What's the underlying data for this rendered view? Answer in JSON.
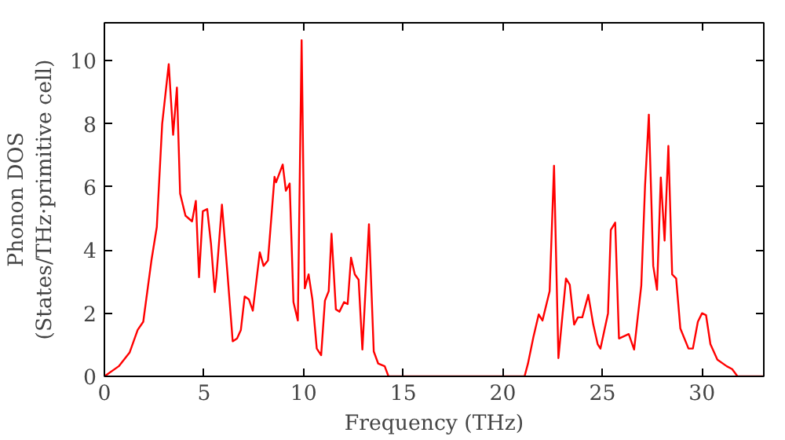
{
  "chart_data": {
    "type": "line",
    "xlabel": "Frequency (THz)",
    "ylabel": "Phonon DOS\n(States/THz·primitive cell)",
    "xlim": [
      0,
      33.1
    ],
    "ylim": [
      0,
      11.2
    ],
    "xticks": [
      0,
      5,
      10,
      15,
      20,
      25,
      30
    ],
    "yticks": [
      0,
      2,
      4,
      6,
      8,
      10
    ],
    "grid": false,
    "series": [
      {
        "color": "#ff0000",
        "x": [
          0,
          0.72,
          1.27,
          1.67,
          1.95,
          2.36,
          2.63,
          2.9,
          3.23,
          3.45,
          3.64,
          3.8,
          4.07,
          4.4,
          4.59,
          4.75,
          4.94,
          5.16,
          5.35,
          5.54,
          5.62,
          5.9,
          6.17,
          6.44,
          6.66,
          6.85,
          7.04,
          7.25,
          7.45,
          7.8,
          7.99,
          8.21,
          8.54,
          8.62,
          8.95,
          9.11,
          9.3,
          9.49,
          9.71,
          9.9,
          10.06,
          10.25,
          10.44,
          10.66,
          10.88,
          11.07,
          11.26,
          11.4,
          11.62,
          11.8,
          12.03,
          12.21,
          12.38,
          12.57,
          12.76,
          12.95,
          13.28,
          13.52,
          13.74,
          14.07,
          14.26,
          21.09,
          21.26,
          21.53,
          21.8,
          21.99,
          22.35,
          22.57,
          22.79,
          23.17,
          23.36,
          23.58,
          23.77,
          23.99,
          24.29,
          24.54,
          24.76,
          24.9,
          25.28,
          25.42,
          25.64,
          25.83,
          26.32,
          26.59,
          26.95,
          27.14,
          27.33,
          27.55,
          27.74,
          27.93,
          28.12,
          28.31,
          28.5,
          28.7,
          28.91,
          29.32,
          29.54,
          29.79,
          30.0,
          30.2,
          30.42,
          30.77,
          31.24,
          31.51,
          31.78,
          33.1
        ],
        "values": [
          0,
          0.32,
          0.76,
          1.47,
          1.73,
          3.67,
          4.73,
          8.0,
          9.89,
          7.65,
          9.15,
          5.79,
          5.09,
          4.91,
          5.56,
          3.14,
          5.23,
          5.3,
          4.2,
          2.67,
          3.14,
          5.44,
          3.32,
          1.11,
          1.2,
          1.47,
          2.53,
          2.44,
          2.08,
          3.93,
          3.5,
          3.67,
          6.32,
          6.15,
          6.71,
          5.88,
          6.11,
          2.35,
          1.77,
          10.65,
          2.79,
          3.23,
          2.44,
          0.88,
          0.67,
          2.4,
          2.7,
          4.52,
          2.12,
          2.05,
          2.35,
          2.29,
          3.76,
          3.23,
          3.06,
          0.85,
          4.82,
          0.79,
          0.41,
          0.32,
          0,
          0,
          0.4,
          1.23,
          1.96,
          1.77,
          2.7,
          6.67,
          0.58,
          3.1,
          2.9,
          1.64,
          1.87,
          1.87,
          2.58,
          1.64,
          1.02,
          0.88,
          2.0,
          4.64,
          4.87,
          1.2,
          1.34,
          0.85,
          2.88,
          6.05,
          8.29,
          3.5,
          2.74,
          6.3,
          4.3,
          7.3,
          3.23,
          3.1,
          1.52,
          0.88,
          0.88,
          1.73,
          2.0,
          1.94,
          1.02,
          0.53,
          0.32,
          0.23,
          0,
          0
        ]
      }
    ]
  }
}
